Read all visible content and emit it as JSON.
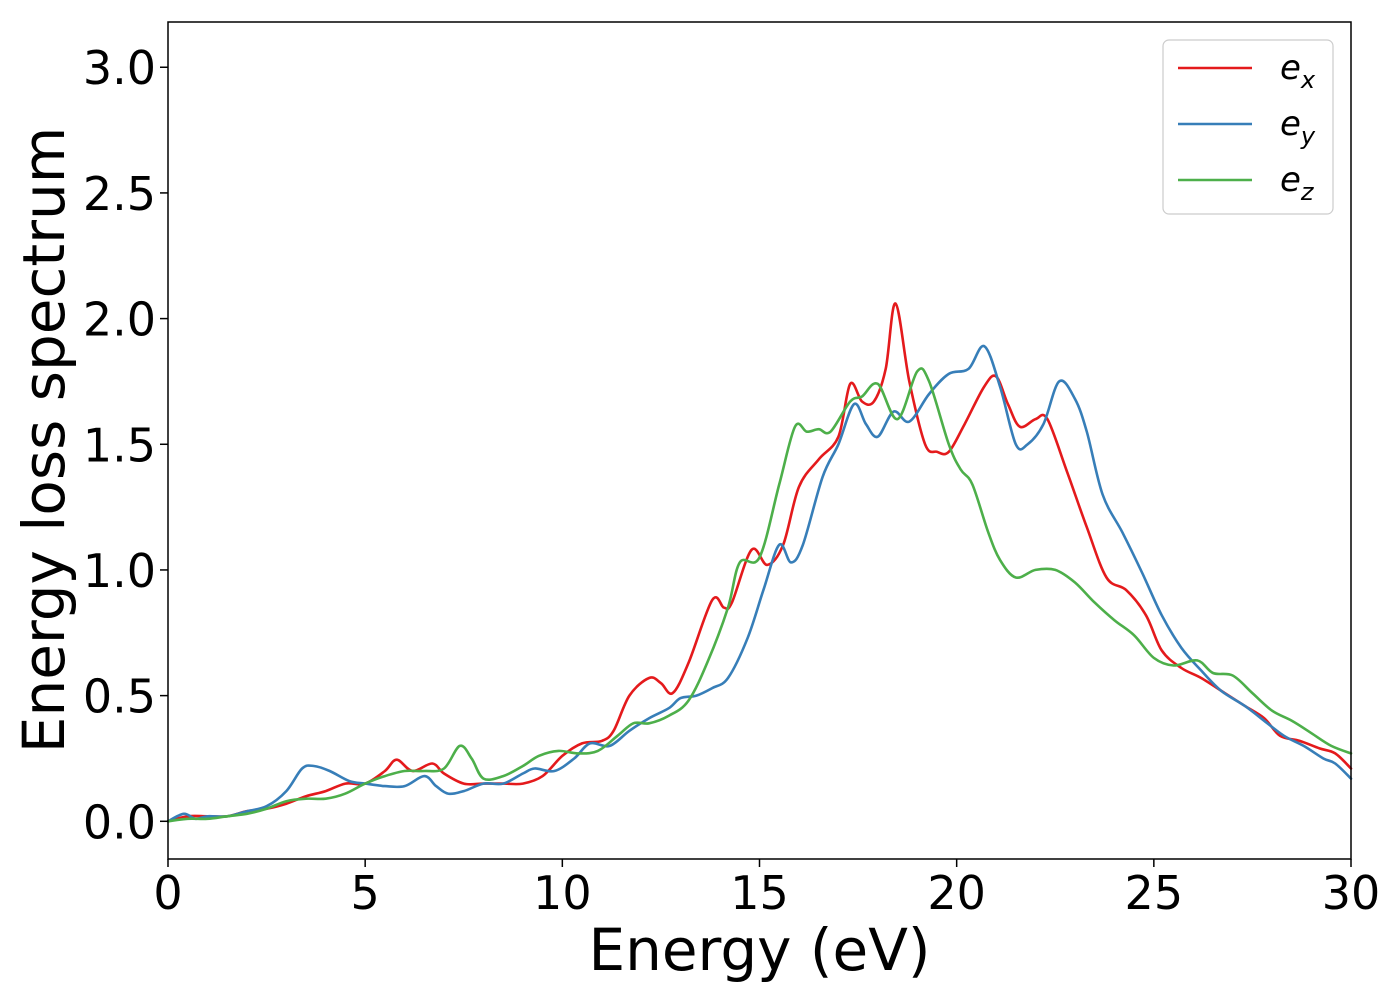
{
  "chart_data": {
    "type": "line",
    "title": "",
    "xlabel": "Energy (eV)",
    "ylabel": "Energy loss spectrum",
    "xlim": [
      0,
      30
    ],
    "ylim": [
      -0.15,
      3.18
    ],
    "xticks": [
      0,
      5,
      10,
      15,
      20,
      25,
      30
    ],
    "xtick_labels": [
      "0",
      "5",
      "10",
      "15",
      "20",
      "25",
      "30"
    ],
    "yticks": [
      0.0,
      0.5,
      1.0,
      1.5,
      2.0,
      2.5,
      3.0
    ],
    "ytick_labels": [
      "0.0",
      "0.5",
      "1.0",
      "1.5",
      "2.0",
      "2.5",
      "3.0"
    ],
    "grid": false,
    "legend_position": "top-right",
    "series": [
      {
        "name": "e_x",
        "label_base": "e",
        "label_sub": "x",
        "color": "#e41a1c",
        "points": [
          [
            0,
            0.0
          ],
          [
            0.5,
            0.02
          ],
          [
            1,
            0.02
          ],
          [
            1.5,
            0.02
          ],
          [
            2,
            0.04
          ],
          [
            2.5,
            0.05
          ],
          [
            3,
            0.07
          ],
          [
            3.5,
            0.1
          ],
          [
            4,
            0.12
          ],
          [
            4.5,
            0.15
          ],
          [
            5,
            0.15
          ],
          [
            5.5,
            0.2
          ],
          [
            5.8,
            0.245
          ],
          [
            6.2,
            0.2
          ],
          [
            6.7,
            0.23
          ],
          [
            7,
            0.19
          ],
          [
            7.5,
            0.15
          ],
          [
            8,
            0.15
          ],
          [
            8.5,
            0.15
          ],
          [
            9,
            0.15
          ],
          [
            9.5,
            0.18
          ],
          [
            10,
            0.26
          ],
          [
            10.5,
            0.31
          ],
          [
            11,
            0.32
          ],
          [
            11.3,
            0.36
          ],
          [
            11.7,
            0.5
          ],
          [
            12.2,
            0.57
          ],
          [
            12.5,
            0.55
          ],
          [
            12.8,
            0.51
          ],
          [
            13.2,
            0.63
          ],
          [
            13.8,
            0.88
          ],
          [
            14.1,
            0.85
          ],
          [
            14.3,
            0.87
          ],
          [
            14.8,
            1.08
          ],
          [
            15.2,
            1.02
          ],
          [
            15.6,
            1.1
          ],
          [
            16,
            1.33
          ],
          [
            16.5,
            1.44
          ],
          [
            17,
            1.53
          ],
          [
            17.3,
            1.74
          ],
          [
            17.6,
            1.67
          ],
          [
            17.9,
            1.67
          ],
          [
            18.2,
            1.8
          ],
          [
            18.45,
            2.06
          ],
          [
            18.8,
            1.75
          ],
          [
            19.2,
            1.5
          ],
          [
            19.5,
            1.47
          ],
          [
            19.8,
            1.47
          ],
          [
            20.2,
            1.58
          ],
          [
            20.7,
            1.73
          ],
          [
            21,
            1.77
          ],
          [
            21.3,
            1.66
          ],
          [
            21.6,
            1.57
          ],
          [
            22,
            1.6
          ],
          [
            22.3,
            1.6
          ],
          [
            22.8,
            1.39
          ],
          [
            23.3,
            1.17
          ],
          [
            23.8,
            0.97
          ],
          [
            24.3,
            0.92
          ],
          [
            24.8,
            0.82
          ],
          [
            25.2,
            0.68
          ],
          [
            25.7,
            0.61
          ],
          [
            26.2,
            0.57
          ],
          [
            26.8,
            0.51
          ],
          [
            27.3,
            0.46
          ],
          [
            27.8,
            0.41
          ],
          [
            28.2,
            0.34
          ],
          [
            28.7,
            0.32
          ],
          [
            29.2,
            0.29
          ],
          [
            29.6,
            0.27
          ],
          [
            30,
            0.21
          ]
        ]
      },
      {
        "name": "e_y",
        "label_base": "e",
        "label_sub": "y",
        "color": "#377eb8",
        "points": [
          [
            0,
            0.0
          ],
          [
            0.4,
            0.03
          ],
          [
            0.7,
            0.01
          ],
          [
            1,
            0.02
          ],
          [
            1.5,
            0.02
          ],
          [
            2,
            0.04
          ],
          [
            2.5,
            0.06
          ],
          [
            3,
            0.12
          ],
          [
            3.4,
            0.21
          ],
          [
            3.7,
            0.22
          ],
          [
            4.1,
            0.2
          ],
          [
            4.6,
            0.16
          ],
          [
            5,
            0.15
          ],
          [
            5.5,
            0.14
          ],
          [
            6,
            0.14
          ],
          [
            6.5,
            0.18
          ],
          [
            6.8,
            0.14
          ],
          [
            7.1,
            0.11
          ],
          [
            7.5,
            0.12
          ],
          [
            8,
            0.15
          ],
          [
            8.5,
            0.15
          ],
          [
            9,
            0.19
          ],
          [
            9.3,
            0.21
          ],
          [
            9.8,
            0.2
          ],
          [
            10.3,
            0.25
          ],
          [
            10.7,
            0.31
          ],
          [
            11.2,
            0.3
          ],
          [
            11.7,
            0.36
          ],
          [
            12.2,
            0.41
          ],
          [
            12.7,
            0.45
          ],
          [
            13,
            0.49
          ],
          [
            13.4,
            0.5
          ],
          [
            13.8,
            0.53
          ],
          [
            14.2,
            0.57
          ],
          [
            14.7,
            0.73
          ],
          [
            15.1,
            0.92
          ],
          [
            15.5,
            1.1
          ],
          [
            15.8,
            1.03
          ],
          [
            16.1,
            1.1
          ],
          [
            16.6,
            1.37
          ],
          [
            17,
            1.5
          ],
          [
            17.4,
            1.66
          ],
          [
            17.7,
            1.58
          ],
          [
            18,
            1.53
          ],
          [
            18.4,
            1.63
          ],
          [
            18.8,
            1.59
          ],
          [
            19.3,
            1.7
          ],
          [
            19.8,
            1.78
          ],
          [
            20.3,
            1.8
          ],
          [
            20.7,
            1.89
          ],
          [
            21.1,
            1.73
          ],
          [
            21.5,
            1.5
          ],
          [
            21.8,
            1.5
          ],
          [
            22.2,
            1.58
          ],
          [
            22.6,
            1.75
          ],
          [
            23,
            1.68
          ],
          [
            23.3,
            1.55
          ],
          [
            23.7,
            1.3
          ],
          [
            24.2,
            1.15
          ],
          [
            24.7,
            0.99
          ],
          [
            25.2,
            0.82
          ],
          [
            25.7,
            0.69
          ],
          [
            26.2,
            0.6
          ],
          [
            26.7,
            0.52
          ],
          [
            27.3,
            0.46
          ],
          [
            27.8,
            0.4
          ],
          [
            28.3,
            0.34
          ],
          [
            28.8,
            0.3
          ],
          [
            29.3,
            0.25
          ],
          [
            29.6,
            0.23
          ],
          [
            30,
            0.17
          ]
        ]
      },
      {
        "name": "e_z",
        "label_base": "e",
        "label_sub": "z",
        "color": "#4daf4a",
        "points": [
          [
            0,
            0.0
          ],
          [
            0.5,
            0.01
          ],
          [
            1,
            0.01
          ],
          [
            1.5,
            0.02
          ],
          [
            2,
            0.03
          ],
          [
            2.5,
            0.05
          ],
          [
            3,
            0.08
          ],
          [
            3.5,
            0.09
          ],
          [
            4,
            0.09
          ],
          [
            4.5,
            0.11
          ],
          [
            5,
            0.15
          ],
          [
            5.5,
            0.18
          ],
          [
            6,
            0.2
          ],
          [
            6.5,
            0.2
          ],
          [
            7,
            0.21
          ],
          [
            7.4,
            0.3
          ],
          [
            7.7,
            0.25
          ],
          [
            8,
            0.17
          ],
          [
            8.5,
            0.18
          ],
          [
            9,
            0.22
          ],
          [
            9.4,
            0.26
          ],
          [
            9.9,
            0.28
          ],
          [
            10.4,
            0.27
          ],
          [
            10.9,
            0.28
          ],
          [
            11.4,
            0.34
          ],
          [
            11.8,
            0.39
          ],
          [
            12.2,
            0.39
          ],
          [
            12.7,
            0.42
          ],
          [
            13.2,
            0.48
          ],
          [
            13.7,
            0.64
          ],
          [
            14.2,
            0.85
          ],
          [
            14.5,
            1.03
          ],
          [
            15,
            1.05
          ],
          [
            15.5,
            1.34
          ],
          [
            15.9,
            1.57
          ],
          [
            16.2,
            1.55
          ],
          [
            16.5,
            1.56
          ],
          [
            16.8,
            1.55
          ],
          [
            17.3,
            1.67
          ],
          [
            17.6,
            1.69
          ],
          [
            18,
            1.74
          ],
          [
            18.5,
            1.6
          ],
          [
            19,
            1.79
          ],
          [
            19.3,
            1.75
          ],
          [
            19.8,
            1.5
          ],
          [
            20.1,
            1.4
          ],
          [
            20.4,
            1.34
          ],
          [
            20.8,
            1.15
          ],
          [
            21.1,
            1.04
          ],
          [
            21.5,
            0.97
          ],
          [
            22,
            1.0
          ],
          [
            22.5,
            1.0
          ],
          [
            23,
            0.95
          ],
          [
            23.5,
            0.87
          ],
          [
            24,
            0.8
          ],
          [
            24.5,
            0.74
          ],
          [
            25,
            0.65
          ],
          [
            25.5,
            0.62
          ],
          [
            26.1,
            0.64
          ],
          [
            26.5,
            0.59
          ],
          [
            27,
            0.58
          ],
          [
            27.5,
            0.51
          ],
          [
            28,
            0.44
          ],
          [
            28.5,
            0.4
          ],
          [
            29,
            0.35
          ],
          [
            29.5,
            0.3
          ],
          [
            30,
            0.27
          ]
        ]
      }
    ]
  }
}
